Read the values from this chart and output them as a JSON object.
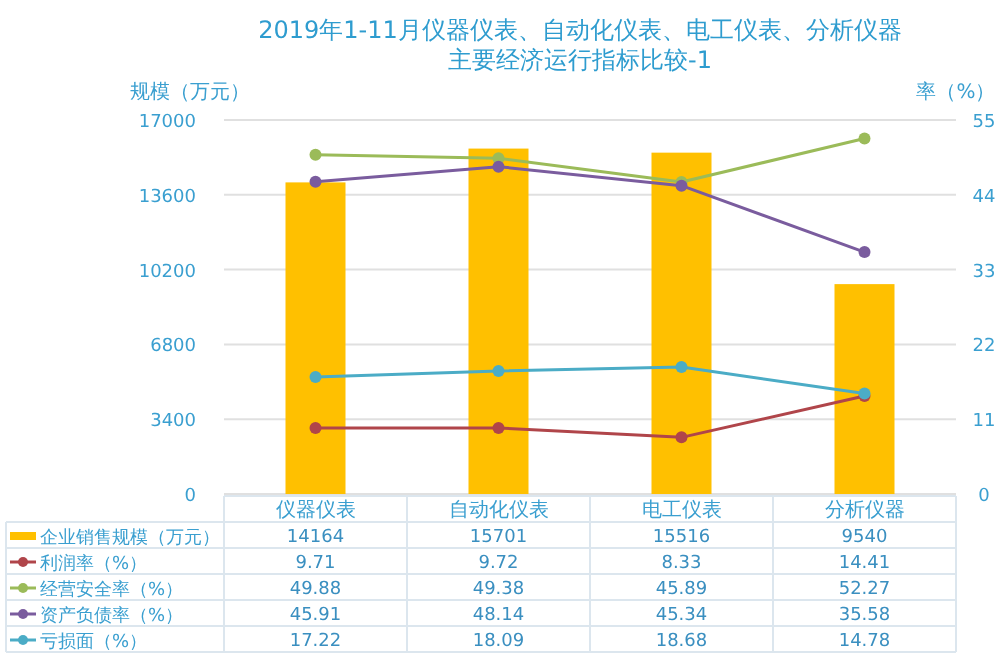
{
  "chart_data": {
    "type": "bar",
    "title": "2019年1-11月仪器仪表、自动化仪表、电工仪表、分析仪器",
    "subtitle": "主要经济运行指标比较-1",
    "ylabel": "规模（万元）",
    "y2label": "率（%）",
    "categories": [
      "仪器仪表",
      "自动化仪表",
      "电工仪表",
      "分析仪器"
    ],
    "ylim": [
      0,
      17000
    ],
    "yticks": [
      0,
      3400,
      6800,
      10200,
      13600,
      17000
    ],
    "y2lim": [
      0,
      55
    ],
    "y2ticks": [
      0,
      11,
      22,
      33,
      44,
      55
    ],
    "grid": "y",
    "legend": "bottom",
    "data_labels": true,
    "marker": "circle",
    "series": [
      {
        "name": "企业销售规模（万元）",
        "color": "#ffc000",
        "values": [
          14164,
          15701,
          15516,
          9540
        ]
      },
      {
        "name": "利润率（%）",
        "type": "line",
        "axis": "y2",
        "color": "#b0454a",
        "values": [
          9.71,
          9.72,
          8.33,
          14.41
        ]
      },
      {
        "name": "经营安全率（%）",
        "type": "line",
        "axis": "y2",
        "color": "#9bbb59",
        "values": [
          49.88,
          49.38,
          45.89,
          52.27
        ]
      },
      {
        "name": "资产负债率（%）",
        "type": "line",
        "axis": "y2",
        "color": "#7a5c9e",
        "values": [
          45.91,
          48.14,
          45.34,
          35.58
        ]
      },
      {
        "name": "亏损面（%）",
        "type": "line",
        "axis": "y2",
        "color": "#4bacc6",
        "values": [
          17.22,
          18.09,
          18.68,
          14.78
        ]
      }
    ]
  }
}
